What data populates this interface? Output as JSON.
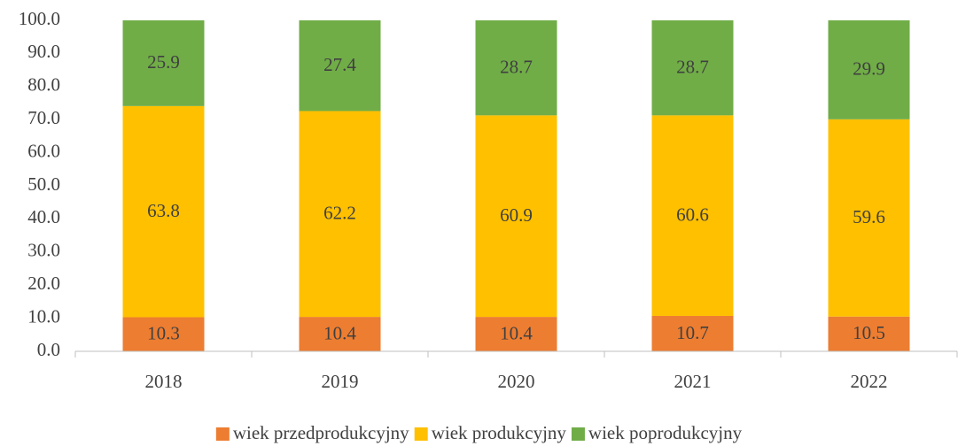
{
  "chart_data": {
    "type": "stacked_bar",
    "categories": [
      "2018",
      "2019",
      "2020",
      "2021",
      "2022"
    ],
    "series": [
      {
        "name": "wiek przedprodukcyjny",
        "color": "#ed7d31",
        "values": [
          10.3,
          10.4,
          10.4,
          10.7,
          10.5
        ]
      },
      {
        "name": "wiek produkcyjny",
        "color": "#ffc000",
        "values": [
          63.8,
          62.2,
          60.9,
          60.6,
          59.6
        ]
      },
      {
        "name": "wiek poprodukcyjny",
        "color": "#70ad47",
        "values": [
          25.9,
          27.4,
          28.7,
          28.7,
          29.9
        ]
      }
    ],
    "ylim": [
      0,
      100
    ],
    "yticks": [
      {
        "value": 0,
        "label": "0.0"
      },
      {
        "value": 10,
        "label": "10.0"
      },
      {
        "value": 20,
        "label": "20.0"
      },
      {
        "value": 30,
        "label": "30.0"
      },
      {
        "value": 40,
        "label": "40.0"
      },
      {
        "value": 50,
        "label": "50.0"
      },
      {
        "value": 60,
        "label": "60.0"
      },
      {
        "value": 70,
        "label": "70.0"
      },
      {
        "value": 80,
        "label": "80.0"
      },
      {
        "value": 90,
        "label": "90.0"
      },
      {
        "value": 100,
        "label": "100.0"
      }
    ],
    "grid": false,
    "legend": "bottom"
  }
}
